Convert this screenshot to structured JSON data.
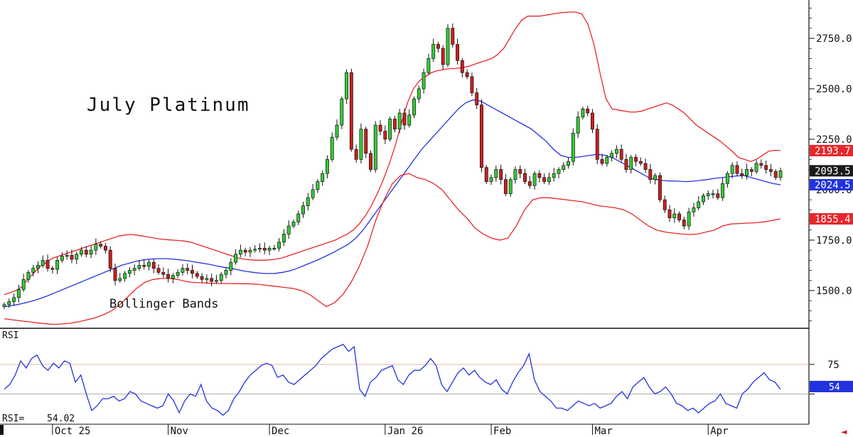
{
  "chart_data": [
    {
      "type": "candlestick",
      "title": "July Platinum",
      "annotation": "Bollinger Bands",
      "ylim": [
        1320,
        2940
      ],
      "y_ticks": [
        1500,
        1750,
        2000,
        2250,
        2500,
        2750
      ],
      "y_tick_labels": [
        "1500.0",
        "1750.0",
        "2000.0",
        "2250.0",
        "2500.0",
        "2750.0"
      ],
      "x_labels": [
        "Oct 25",
        "Nov",
        "Dec",
        "Jan 26",
        "Feb",
        "Mar",
        "Apr"
      ],
      "x_label_bar_index": [
        10,
        34,
        55,
        79,
        101,
        122,
        146
      ],
      "price_flags": [
        {
          "label": "2193.7",
          "value": 2193.7,
          "color": "#e8262b"
        },
        {
          "label": "2093.5",
          "value": 2093.5,
          "color": "#1a1a1a"
        },
        {
          "label": "2024.5",
          "value": 2024.5,
          "color": "#2233dd"
        },
        {
          "label": "1855.4",
          "value": 1855.4,
          "color": "#e8262b"
        }
      ],
      "close": [
        1430,
        1445,
        1465,
        1505,
        1555,
        1590,
        1610,
        1625,
        1650,
        1610,
        1605,
        1650,
        1670,
        1675,
        1655,
        1680,
        1700,
        1680,
        1700,
        1730,
        1720,
        1700,
        1610,
        1550,
        1560,
        1585,
        1600,
        1610,
        1625,
        1620,
        1640,
        1610,
        1590,
        1580,
        1560,
        1575,
        1590,
        1610,
        1600,
        1585,
        1570,
        1555,
        1560,
        1545,
        1550,
        1580,
        1600,
        1640,
        1680,
        1700,
        1690,
        1700,
        1705,
        1710,
        1700,
        1710,
        1710,
        1740,
        1780,
        1820,
        1840,
        1880,
        1920,
        1960,
        2000,
        2040,
        2080,
        2150,
        2260,
        2320,
        2450,
        2580,
        2200,
        2150,
        2300,
        2180,
        2100,
        2320,
        2290,
        2250,
        2350,
        2300,
        2380,
        2320,
        2370,
        2450,
        2500,
        2580,
        2650,
        2720,
        2700,
        2620,
        2800,
        2720,
        2640,
        2580,
        2560,
        2480,
        2420,
        2110,
        2040,
        2060,
        2100,
        2050,
        1980,
        2050,
        2100,
        2080,
        2040,
        2020,
        2080,
        2060,
        2040,
        2060,
        2080,
        2100,
        2120,
        2140,
        2280,
        2360,
        2400,
        2380,
        2300,
        2150,
        2130,
        2160,
        2180,
        2200,
        2150,
        2100,
        2160,
        2140,
        2130,
        2100,
        2050,
        2070,
        1950,
        1900,
        1860,
        1880,
        1850,
        1820,
        1890,
        1910,
        1940,
        1970,
        1980,
        1980,
        1960,
        2030,
        2080,
        2120,
        2080,
        2070,
        2100,
        2090,
        2130,
        2120,
        2100,
        2090,
        2060,
        2093.5
      ],
      "upper_band": [
        1480,
        1490,
        1500,
        1520,
        1560,
        1590,
        1620,
        1640,
        1660,
        1670,
        1680,
        1690,
        1700,
        1710,
        1720,
        1730,
        1740,
        1750,
        1760,
        1770,
        1775,
        1778,
        1775,
        1770,
        1765,
        1760,
        1755,
        1752,
        1750,
        1748,
        1745,
        1740,
        1730,
        1720,
        1710,
        1700,
        1690,
        1680,
        1670,
        1660,
        1655,
        1652,
        1650,
        1650,
        1652,
        1655,
        1660,
        1670,
        1680,
        1690,
        1700,
        1710,
        1720,
        1730,
        1740,
        1750,
        1765,
        1780,
        1800,
        1830,
        1870,
        1920,
        1980,
        2050,
        2130,
        2220,
        2330,
        2430,
        2500,
        2540,
        2560,
        2580,
        2590,
        2595,
        2600,
        2600,
        2605,
        2610,
        2620,
        2630,
        2640,
        2650,
        2670,
        2700,
        2750,
        2800,
        2840,
        2860,
        2860,
        2860,
        2865,
        2870,
        2875,
        2878,
        2880,
        2880,
        2870,
        2820,
        2720,
        2580,
        2450,
        2400,
        2395,
        2390,
        2385,
        2385,
        2390,
        2400,
        2410,
        2420,
        2430,
        2420,
        2400,
        2380,
        2350,
        2320,
        2300,
        2280,
        2260,
        2240,
        2215,
        2190,
        2160,
        2150,
        2140,
        2150,
        2170,
        2190,
        2195,
        2193.7
      ],
      "middle_band": [
        1420,
        1425,
        1432,
        1440,
        1450,
        1462,
        1475,
        1490,
        1505,
        1520,
        1535,
        1550,
        1565,
        1580,
        1595,
        1610,
        1625,
        1635,
        1645,
        1652,
        1656,
        1658,
        1658,
        1656,
        1652,
        1648,
        1642,
        1636,
        1630,
        1622,
        1615,
        1610,
        1602,
        1595,
        1590,
        1586,
        1584,
        1585,
        1590,
        1598,
        1610,
        1625,
        1640,
        1655,
        1672,
        1690,
        1710,
        1730,
        1760,
        1800,
        1850,
        1900,
        1950,
        2000,
        2050,
        2100,
        2150,
        2200,
        2240,
        2280,
        2320,
        2360,
        2400,
        2430,
        2445,
        2440,
        2420,
        2400,
        2380,
        2360,
        2340,
        2320,
        2300,
        2270,
        2240,
        2200,
        2170,
        2160,
        2160,
        2165,
        2170,
        2175,
        2170,
        2160,
        2140,
        2120,
        2100,
        2080,
        2060,
        2050,
        2045,
        2043,
        2042,
        2040,
        2042,
        2046,
        2050,
        2056,
        2060,
        2064,
        2068,
        2070,
        2060,
        2050,
        2040,
        2030,
        2024.5
      ],
      "lower_band": [
        1360,
        1355,
        1350,
        1345,
        1340,
        1335,
        1332,
        1334,
        1338,
        1345,
        1355,
        1365,
        1380,
        1400,
        1430,
        1470,
        1510,
        1540,
        1555,
        1560,
        1560,
        1555,
        1545,
        1540,
        1538,
        1536,
        1535,
        1535,
        1534,
        1534,
        1533,
        1530,
        1525,
        1520,
        1515,
        1510,
        1500,
        1480,
        1450,
        1420,
        1440,
        1480,
        1540,
        1620,
        1720,
        1850,
        1950,
        2030,
        2070,
        2080,
        2060,
        2050,
        2030,
        2000,
        1950,
        1900,
        1860,
        1810,
        1780,
        1760,
        1750,
        1760,
        1820,
        1900,
        1950,
        1960,
        1960,
        1955,
        1950,
        1945,
        1940,
        1930,
        1920,
        1915,
        1910,
        1900,
        1880,
        1850,
        1820,
        1800,
        1790,
        1785,
        1780,
        1778,
        1780,
        1790,
        1800,
        1820,
        1830,
        1832,
        1834,
        1836,
        1840,
        1848,
        1855.4
      ],
      "rsi_panel": {
        "label": "RSI",
        "readout_label": "RSI=",
        "readout_value": "54.02",
        "ylim": [
          25,
          105
        ],
        "levels": [
          75,
          50
        ],
        "level_labels": [
          "75",
          "50"
        ],
        "current_label": "54",
        "values": [
          54,
          58,
          66,
          78,
          72,
          80,
          83,
          74,
          70,
          76,
          72,
          78,
          76,
          60,
          66,
          50,
          36,
          40,
          46,
          46,
          48,
          44,
          46,
          52,
          50,
          44,
          42,
          40,
          38,
          40,
          50,
          44,
          34,
          44,
          50,
          48,
          58,
          44,
          38,
          36,
          32,
          36,
          46,
          52,
          60,
          66,
          70,
          74,
          76,
          74,
          64,
          66,
          60,
          58,
          62,
          66,
          70,
          74,
          80,
          84,
          88,
          90,
          92,
          86,
          90,
          54,
          48,
          60,
          64,
          70,
          72,
          74,
          62,
          58,
          66,
          70,
          70,
          74,
          80,
          74,
          58,
          52,
          60,
          68,
          72,
          66,
          70,
          64,
          60,
          58,
          62,
          54,
          50,
          60,
          68,
          74,
          84,
          62,
          52,
          48,
          44,
          38,
          38,
          36,
          40,
          44,
          42,
          40,
          42,
          38,
          40,
          42,
          48,
          52,
          46,
          56,
          60,
          64,
          56,
          50,
          52,
          56,
          50,
          42,
          40,
          36,
          38,
          34,
          38,
          42,
          44,
          50,
          42,
          40,
          38,
          50,
          54,
          60,
          64,
          68,
          62,
          60,
          54
        ]
      }
    }
  ]
}
